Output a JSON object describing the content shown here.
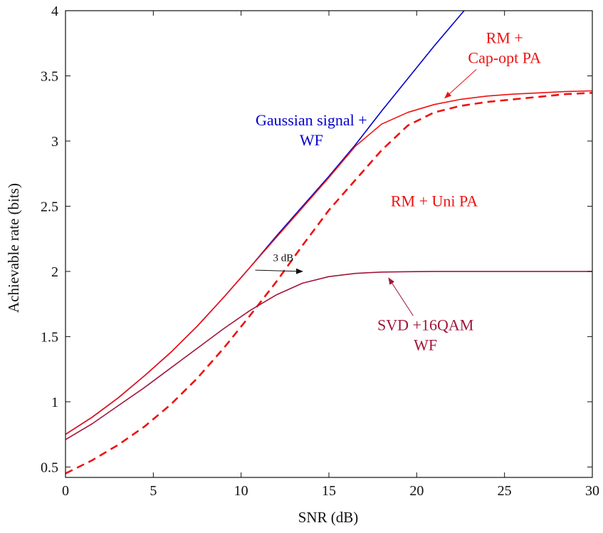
{
  "chart_data": {
    "type": "line",
    "xlabel": "SNR (dB)",
    "ylabel": "Achievable rate (bits)",
    "xlim": [
      0,
      30
    ],
    "ylim": [
      0.42,
      4
    ],
    "xticks": [
      0,
      5,
      10,
      15,
      20,
      25,
      30
    ],
    "yticks": [
      0.5,
      1,
      1.5,
      2,
      2.5,
      3,
      3.5,
      4
    ],
    "grid": false,
    "colors": {
      "blue": "#0000cc",
      "red": "#ee1111",
      "darkred": "#a0163a",
      "axis": "#111111"
    },
    "series": [
      {
        "name": "Gaussian signal + WF",
        "color": "#0000cc",
        "style": "solid",
        "x": [
          0,
          1.5,
          3,
          4.5,
          6,
          7.5,
          9,
          10.5,
          12,
          13.5,
          15,
          16.5,
          18,
          19.5,
          21,
          22.7
        ],
        "y": [
          0.75,
          0.88,
          1.03,
          1.2,
          1.38,
          1.58,
          1.8,
          2.03,
          2.27,
          2.5,
          2.73,
          2.97,
          3.23,
          3.48,
          3.73,
          4.0
        ]
      },
      {
        "name": "RM + Cap-opt PA",
        "color": "#ee1111",
        "style": "solid",
        "x": [
          0,
          1.5,
          3,
          4.5,
          6,
          7.5,
          9,
          10.5,
          12,
          13.5,
          15,
          16.5,
          18,
          19.5,
          21,
          22.5,
          24,
          25.5,
          27,
          28.5,
          30
        ],
        "y": [
          0.75,
          0.88,
          1.03,
          1.2,
          1.38,
          1.58,
          1.8,
          2.03,
          2.26,
          2.49,
          2.72,
          2.96,
          3.13,
          3.22,
          3.28,
          3.32,
          3.345,
          3.36,
          3.37,
          3.38,
          3.385
        ]
      },
      {
        "name": "RM + Uni PA",
        "color": "#ee1111",
        "style": "dashed",
        "x": [
          0,
          1.5,
          3,
          4.5,
          6,
          7.5,
          9,
          10.5,
          12,
          13.5,
          15,
          16.5,
          18,
          19.5,
          21,
          22.5,
          24,
          25.5,
          27,
          28.5,
          30
        ],
        "y": [
          0.45,
          0.55,
          0.67,
          0.81,
          0.98,
          1.18,
          1.41,
          1.66,
          1.92,
          2.2,
          2.47,
          2.7,
          2.93,
          3.12,
          3.22,
          3.27,
          3.3,
          3.32,
          3.34,
          3.36,
          3.37
        ]
      },
      {
        "name": "SVD +16QAM WF",
        "color": "#a0163a",
        "style": "solid",
        "x": [
          0,
          1.5,
          3,
          4.5,
          6,
          7.5,
          9,
          10.5,
          12,
          13.5,
          15,
          16.5,
          18,
          19.5,
          21,
          22.5,
          24,
          25.5,
          27,
          28.5,
          30
        ],
        "y": [
          0.71,
          0.83,
          0.97,
          1.11,
          1.26,
          1.41,
          1.56,
          1.7,
          1.82,
          1.91,
          1.96,
          1.985,
          1.995,
          1.998,
          2.0,
          2.0,
          2.0,
          2.0,
          2.0,
          2.0,
          2.0
        ]
      }
    ],
    "annotations": [
      {
        "lines": [
          "Gaussian signal +",
          "WF"
        ],
        "color": "#0000cc",
        "x": 14.0,
        "y": 3.12
      },
      {
        "lines": [
          "RM +",
          "Cap-opt PA"
        ],
        "color": "#ee1111",
        "x": 25.0,
        "y": 3.75
      },
      {
        "lines": [
          "RM + Uni PA"
        ],
        "color": "#ee1111",
        "x": 21.0,
        "y": 2.5
      },
      {
        "lines": [
          "SVD +16QAM",
          "WF"
        ],
        "color": "#a0163a",
        "x": 20.5,
        "y": 1.55
      },
      {
        "lines": [
          "3 dB"
        ],
        "color": "#111111",
        "x": 12.4,
        "y": 2.08,
        "small": true
      }
    ],
    "arrows": [
      {
        "from": [
          23.4,
          3.55
        ],
        "to": [
          21.6,
          3.33
        ],
        "color": "#ee1111"
      },
      {
        "from": [
          19.8,
          1.66
        ],
        "to": [
          18.4,
          1.95
        ],
        "color": "#a0163a"
      },
      {
        "from": [
          10.8,
          2.01
        ],
        "to": [
          13.5,
          2.0
        ],
        "color": "#111111"
      }
    ]
  }
}
